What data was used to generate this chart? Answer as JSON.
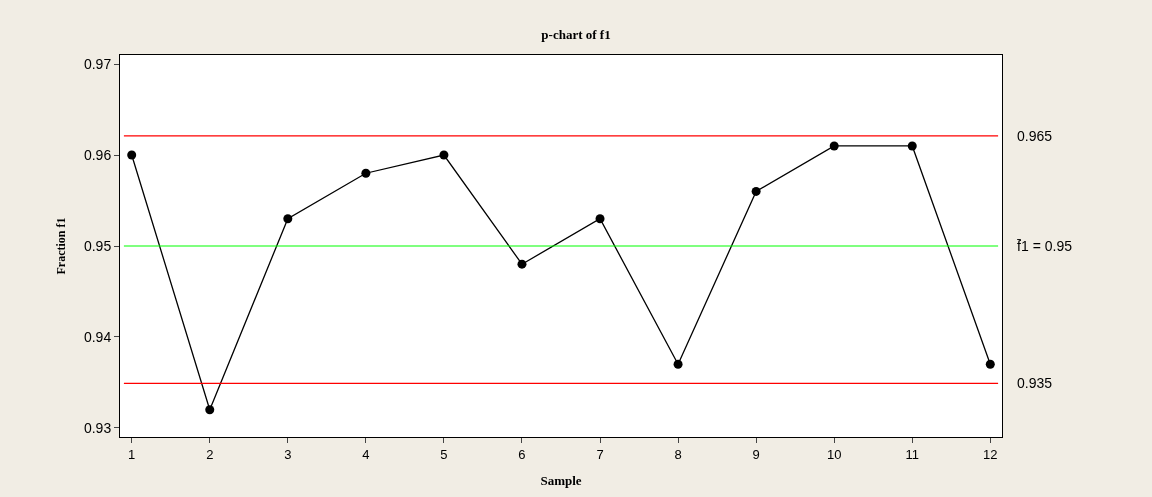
{
  "chart_data": {
    "type": "line",
    "title": "p-chart of f1",
    "xlabel": "Sample",
    "ylabel": "Fraction f1",
    "x": [
      1,
      2,
      3,
      4,
      5,
      6,
      7,
      8,
      9,
      10,
      11,
      12
    ],
    "series": [
      {
        "color": "#000000",
        "values": [
          0.96,
          0.932,
          0.953,
          0.958,
          0.96,
          0.948,
          0.953,
          0.937,
          0.956,
          0.961,
          0.961,
          0.937
        ]
      }
    ],
    "xlim": [
      0.85,
      12.15
    ],
    "xticks": [
      1,
      2,
      3,
      4,
      5,
      6,
      7,
      8,
      9,
      10,
      11,
      12
    ],
    "ylim": [
      0.929,
      0.971
    ],
    "yticks": [
      {
        "value": 0.93,
        "label": "0.93"
      },
      {
        "value": 0.94,
        "label": "0.94"
      },
      {
        "value": 0.95,
        "label": "0.95"
      },
      {
        "value": 0.96,
        "label": "0.96"
      },
      {
        "value": 0.97,
        "label": "0.97"
      }
    ],
    "ref_lines": [
      {
        "axis": "y",
        "value": 0.9621,
        "color": "#ff0000"
      },
      {
        "axis": "y",
        "value": 0.95,
        "label": "f̄1 = 0.95",
        "color": "#00ff00"
      },
      {
        "axis": "y",
        "value": 0.9349,
        "color": "#ff0000"
      }
    ],
    "annotations": [
      "0.965",
      "0.935"
    ],
    "marker": "circle",
    "line_style": "solid"
  }
}
